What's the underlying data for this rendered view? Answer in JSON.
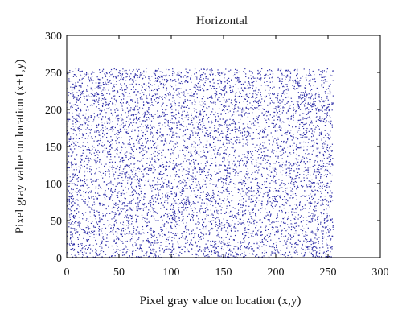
{
  "chart_data": {
    "type": "scatter",
    "title": "Horizontal",
    "xlabel": "Pixel gray value on location (x,y)",
    "ylabel": "Pixel gray value on location (x+1,y)",
    "xlim": [
      0,
      300
    ],
    "ylim": [
      0,
      300
    ],
    "xticks": [
      0,
      50,
      100,
      150,
      200,
      250,
      300
    ],
    "yticks": [
      0,
      50,
      100,
      150,
      200,
      250,
      300
    ],
    "grid": false,
    "point_color": "#2b2ba6",
    "series": [
      {
        "distribution": "approximately uniform over [0,255] x [0,255]",
        "x_range": [
          0,
          255
        ],
        "y_range": [
          0,
          255
        ],
        "sample_points": [
          [
            3,
            250
          ],
          [
            18,
            12
          ],
          [
            27,
            131
          ],
          [
            41,
            208
          ],
          [
            52,
            77
          ],
          [
            60,
            155
          ],
          [
            74,
            33
          ],
          [
            85,
            242
          ],
          [
            93,
            101
          ],
          [
            108,
            189
          ],
          [
            117,
            8
          ],
          [
            126,
            226
          ],
          [
            138,
            64
          ],
          [
            147,
            140
          ],
          [
            155,
            17
          ],
          [
            166,
            201
          ],
          [
            172,
            93
          ],
          [
            183,
            248
          ],
          [
            196,
            47
          ],
          [
            204,
            173
          ],
          [
            213,
            118
          ],
          [
            227,
            29
          ],
          [
            236,
            214
          ],
          [
            244,
            82
          ],
          [
            251,
            160
          ],
          [
            10,
            88
          ],
          [
            35,
            57
          ],
          [
            68,
            120
          ],
          [
            99,
            232
          ],
          [
            130,
            176
          ],
          [
            160,
            41
          ],
          [
            190,
            137
          ],
          [
            220,
            71
          ],
          [
            248,
            6
          ]
        ]
      }
    ]
  }
}
